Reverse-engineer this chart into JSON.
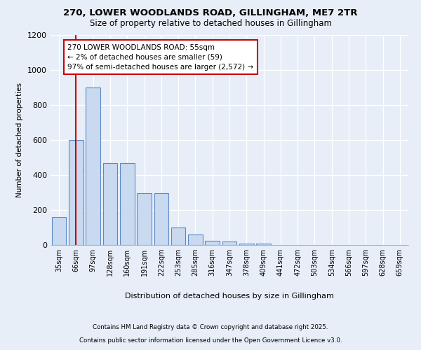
{
  "title1": "270, LOWER WOODLANDS ROAD, GILLINGHAM, ME7 2TR",
  "title2": "Size of property relative to detached houses in Gillingham",
  "xlabel": "Distribution of detached houses by size in Gillingham",
  "ylabel": "Number of detached properties",
  "categories": [
    "35sqm",
    "66sqm",
    "97sqm",
    "128sqm",
    "160sqm",
    "191sqm",
    "222sqm",
    "253sqm",
    "285sqm",
    "316sqm",
    "347sqm",
    "378sqm",
    "409sqm",
    "441sqm",
    "472sqm",
    "503sqm",
    "534sqm",
    "566sqm",
    "597sqm",
    "628sqm",
    "659sqm"
  ],
  "values": [
    160,
    600,
    900,
    470,
    470,
    295,
    295,
    100,
    60,
    25,
    20,
    10,
    8,
    0,
    0,
    0,
    0,
    0,
    0,
    0,
    0
  ],
  "bar_color": "#c9d9ef",
  "bar_edge_color": "#5a8ac6",
  "vline_x": 1,
  "vline_color": "#cc0000",
  "annotation_title": "270 LOWER WOODLANDS ROAD: 55sqm",
  "annotation_line1": "← 2% of detached houses are smaller (59)",
  "annotation_line2": "97% of semi-detached houses are larger (2,572) →",
  "annotation_box_color": "#ffffff",
  "annotation_box_edge": "#cc0000",
  "ylim": [
    0,
    1200
  ],
  "yticks": [
    0,
    200,
    400,
    600,
    800,
    1000,
    1200
  ],
  "background_color": "#e8eef8",
  "grid_color": "#d0d8e8",
  "footer1": "Contains HM Land Registry data © Crown copyright and database right 2025.",
  "footer2": "Contains public sector information licensed under the Open Government Licence v3.0."
}
